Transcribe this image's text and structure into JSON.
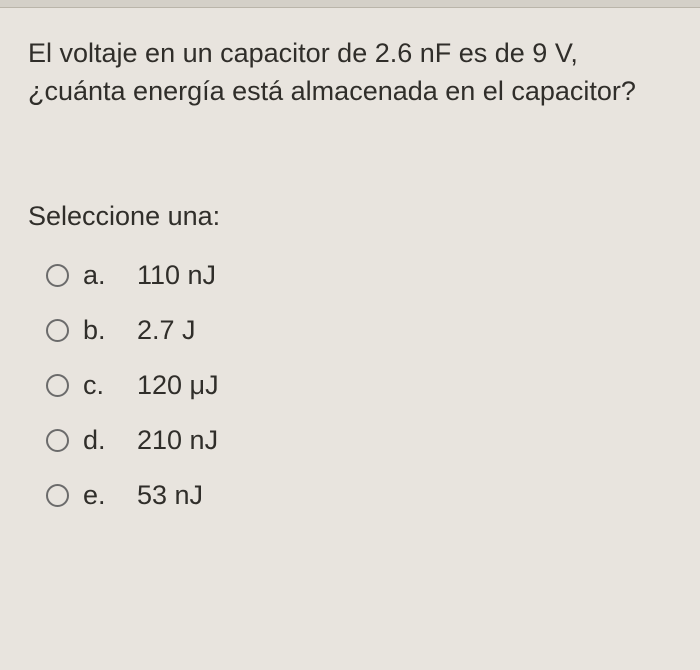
{
  "question": {
    "text": "El voltaje en un capacitor de 2.6 nF es de 9 V, ¿cuánta energía está almacenada en el capacitor?"
  },
  "prompt": "Seleccione una:",
  "options": [
    {
      "letter": "a.",
      "text": "110 nJ"
    },
    {
      "letter": "b.",
      "text": "2.7 J"
    },
    {
      "letter": "c.",
      "text": "120 μJ"
    },
    {
      "letter": "d.",
      "text": "210 nJ"
    },
    {
      "letter": "e.",
      "text": "53 nJ"
    }
  ],
  "colors": {
    "background": "#e8e4de",
    "text": "#302e2a",
    "radio_border": "#6b6b6b"
  },
  "typography": {
    "font_family": "Arial",
    "question_fontsize": 27,
    "option_fontsize": 27
  }
}
